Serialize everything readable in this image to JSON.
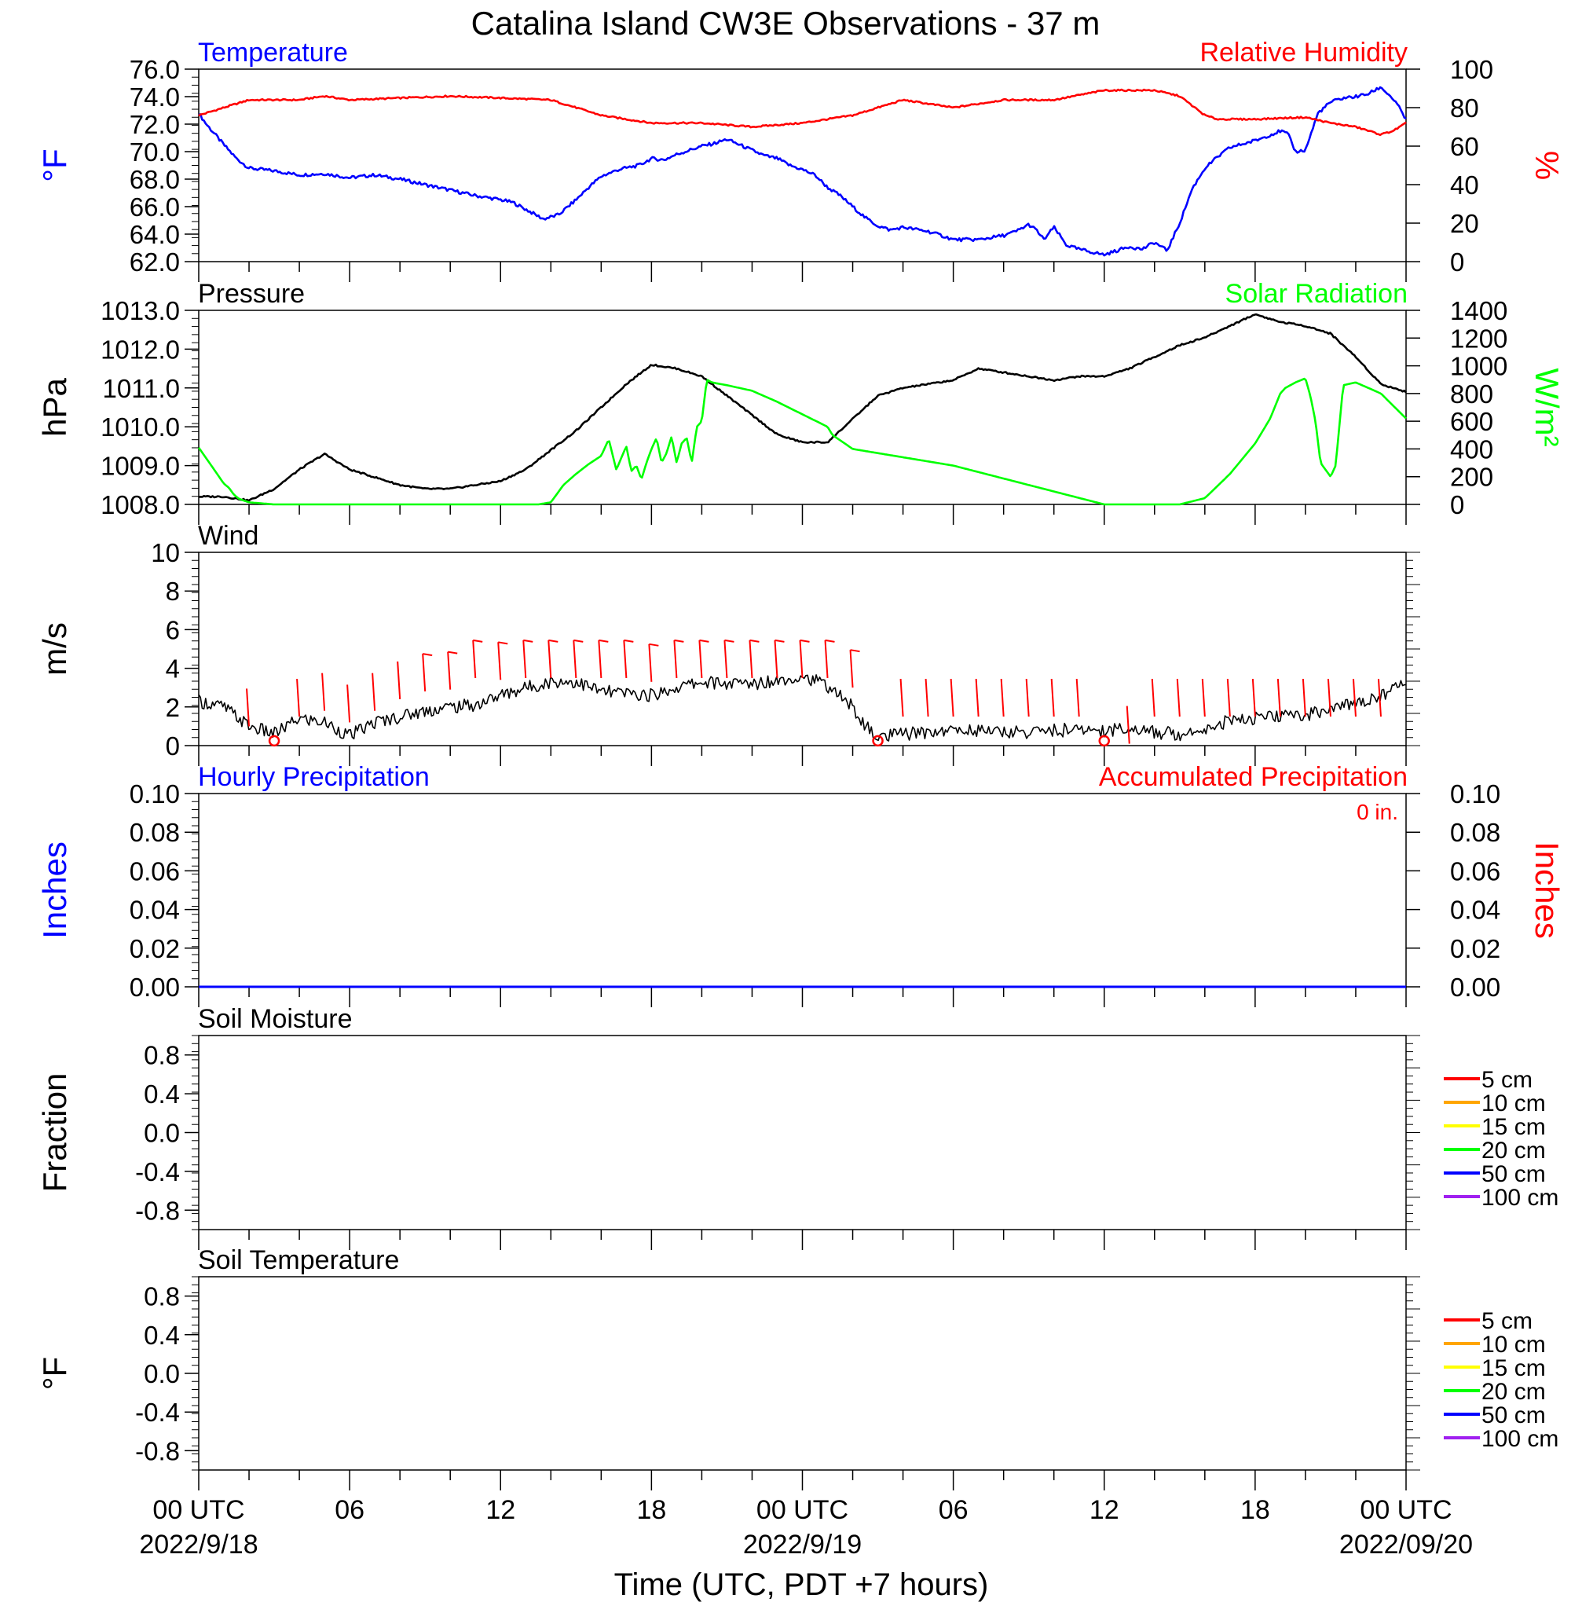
{
  "title": "Catalina Island CW3E Observations - 37 m",
  "xaxis": {
    "label": "Time (UTC, PDT +7 hours)",
    "range_hours": [
      0,
      48
    ],
    "ticks": [
      {
        "hour": 0,
        "label": "00 UTC",
        "date": "2022/9/18"
      },
      {
        "hour": 6,
        "label": "06",
        "date": ""
      },
      {
        "hour": 12,
        "label": "12",
        "date": ""
      },
      {
        "hour": 18,
        "label": "18",
        "date": ""
      },
      {
        "hour": 24,
        "label": "00 UTC",
        "date": "2022/9/19"
      },
      {
        "hour": 30,
        "label": "06",
        "date": ""
      },
      {
        "hour": 36,
        "label": "12",
        "date": ""
      },
      {
        "hour": 42,
        "label": "18",
        "date": ""
      },
      {
        "hour": 48,
        "label": "00 UTC",
        "date": "2022/09/20"
      }
    ]
  },
  "colors": {
    "temperature": "#0000ff",
    "humidity": "#ff0000",
    "pressure": "#000000",
    "solar": "#00ff00",
    "wind": "#000000",
    "wind_barb": "#ff0000",
    "precip": "#ff0000",
    "depths": [
      "#ff0000",
      "#ffa500",
      "#ffff00",
      "#00ff00",
      "#0000ff",
      "#a020f0"
    ]
  },
  "chart_data": [
    {
      "type": "line",
      "panel": "temperature-humidity",
      "left_label": "Temperature",
      "right_label": "Relative Humidity",
      "ylabel_left": "°F",
      "ylabel_right": "%",
      "ylim_left": [
        62,
        76
      ],
      "yticks_left": [
        "62.0",
        "64.0",
        "66.0",
        "68.0",
        "70.0",
        "72.0",
        "74.0",
        "76.0"
      ],
      "ylim_right": [
        0,
        100
      ],
      "yticks_right": [
        "0",
        "20",
        "40",
        "60",
        "80",
        "100"
      ],
      "series": [
        {
          "axis": "left",
          "x": [
            0,
            0.3,
            1,
            1.5,
            2,
            3,
            4,
            5,
            6,
            7,
            8,
            9,
            10,
            11,
            12,
            12.5,
            13,
            13.7,
            14.3,
            15,
            15.5,
            16,
            16.7,
            17.5,
            18,
            18.5,
            19,
            19.5,
            20,
            20.5,
            21,
            21.5,
            22,
            22.5,
            23,
            23.5,
            24,
            24.5,
            25,
            25.5,
            26,
            26.5,
            27,
            27.5,
            28,
            29,
            29.7,
            30,
            31,
            32,
            32.5,
            33,
            33.3,
            33.6,
            34,
            34.5,
            35,
            35.5,
            36,
            36.5,
            37,
            37.5,
            38,
            38.5,
            39,
            39.5,
            40,
            40.5,
            41,
            42,
            43,
            43.3,
            43.6,
            44,
            44.5,
            45,
            45.5,
            46,
            46.5,
            47,
            47.5,
            47.8,
            48
          ],
          "values": [
            72.8,
            72,
            70.5,
            69.5,
            68.8,
            68.6,
            68.3,
            68.4,
            68.1,
            68.3,
            68,
            67.6,
            67.2,
            66.8,
            66.5,
            66.3,
            65.8,
            65.1,
            65.4,
            66.5,
            67.4,
            68.2,
            68.7,
            69,
            69.5,
            69.4,
            69.8,
            70.1,
            70.4,
            70.6,
            70.9,
            70.5,
            70.1,
            69.7,
            69.5,
            69,
            68.7,
            68.3,
            67.4,
            66.8,
            66,
            65.2,
            64.6,
            64.3,
            64.5,
            64.2,
            63.8,
            63.6,
            63.6,
            63.9,
            64.2,
            64.7,
            64.3,
            63.6,
            64.5,
            63.2,
            62.9,
            62.7,
            62.5,
            62.8,
            63.1,
            62.9,
            63.4,
            62.8,
            64.8,
            67.3,
            68.8,
            69.6,
            70.3,
            70.8,
            71.5,
            71.3,
            70,
            70.1,
            72.8,
            73.6,
            73.9,
            74,
            74.2,
            74.7,
            73.8,
            73,
            72.3
          ]
        },
        {
          "axis": "right",
          "x": [
            0,
            1,
            2,
            4,
            5,
            6,
            8,
            10,
            12,
            14,
            15,
            16,
            17,
            18,
            20,
            22,
            24,
            26,
            27,
            28,
            30,
            32,
            34,
            36,
            38,
            39,
            40,
            40.5,
            42,
            44,
            45,
            46,
            47,
            47.5,
            48
          ],
          "values": [
            76,
            80,
            84,
            84,
            86,
            84,
            85,
            86,
            85,
            84,
            80,
            76,
            74,
            72,
            72,
            70,
            72,
            76,
            80,
            84,
            80,
            84,
            84,
            89,
            89,
            86,
            76,
            74,
            74,
            75,
            72,
            70,
            66,
            68,
            72
          ]
        }
      ]
    },
    {
      "type": "line",
      "panel": "pressure-solar",
      "left_label": "Pressure",
      "right_label": "Solar Radiation",
      "ylabel_left": "hPa",
      "ylabel_right": "W/m²",
      "ylim_left": [
        1008,
        1013
      ],
      "yticks_left": [
        "1008.0",
        "1009.0",
        "1010.0",
        "1011.0",
        "1012.0",
        "1013.0"
      ],
      "ylim_right": [
        0,
        1400
      ],
      "yticks_right": [
        "0",
        "200",
        "400",
        "600",
        "800",
        "1000",
        "1200",
        "1400"
      ],
      "series": [
        {
          "axis": "left",
          "x": [
            0,
            1,
            2,
            3,
            4,
            5,
            6,
            7,
            8,
            9,
            10,
            11,
            12,
            13,
            14,
            15,
            16,
            17,
            18,
            19,
            20,
            21,
            22,
            23,
            24,
            25,
            26,
            27,
            28,
            29,
            30,
            31,
            32,
            33,
            34,
            35,
            36,
            37,
            38,
            39,
            40,
            41,
            42,
            43,
            44,
            45,
            46,
            47,
            48
          ],
          "values": [
            1008.2,
            1008.2,
            1008.1,
            1008.4,
            1008.9,
            1009.3,
            1008.9,
            1008.7,
            1008.5,
            1008.4,
            1008.4,
            1008.5,
            1008.6,
            1008.9,
            1009.4,
            1009.9,
            1010.5,
            1011.1,
            1011.6,
            1011.5,
            1011.3,
            1010.8,
            1010.3,
            1009.8,
            1009.6,
            1009.6,
            1010.2,
            1010.8,
            1011.0,
            1011.1,
            1011.2,
            1011.5,
            1011.4,
            1011.3,
            1011.2,
            1011.3,
            1011.3,
            1011.5,
            1011.8,
            1012.1,
            1012.3,
            1012.6,
            1012.9,
            1012.7,
            1012.6,
            1012.4,
            1011.8,
            1011.1,
            1010.9
          ]
        },
        {
          "axis": "right",
          "x": [
            0,
            0.5,
            1,
            1.2,
            1.4,
            1.6,
            2,
            3,
            6,
            10,
            13.5,
            14,
            14.5,
            15,
            15.5,
            16,
            16.3,
            16.6,
            17,
            17.2,
            17.4,
            17.6,
            17.8,
            18,
            18.2,
            18.4,
            18.6,
            18.8,
            19,
            19.2,
            19.4,
            19.6,
            19.8,
            20,
            20.2,
            20.4,
            21,
            22,
            23,
            24,
            25,
            25.2,
            26,
            30,
            36,
            38,
            38.5,
            39,
            40,
            41,
            42,
            42.6,
            43,
            43.2,
            43.6,
            44,
            44.2,
            44.4,
            44.6,
            44.8,
            45,
            45.2,
            45.5,
            46,
            47,
            48
          ],
          "values": [
            410,
            280,
            150,
            120,
            70,
            40,
            15,
            0,
            0,
            0,
            0,
            15,
            140,
            220,
            290,
            350,
            470,
            250,
            420,
            240,
            280,
            180,
            300,
            400,
            480,
            300,
            370,
            490,
            300,
            440,
            480,
            300,
            560,
            600,
            900,
            880,
            860,
            820,
            740,
            650,
            560,
            500,
            400,
            280,
            0,
            0,
            0,
            0,
            45,
            220,
            440,
            620,
            800,
            840,
            880,
            910,
            780,
            600,
            300,
            250,
            200,
            280,
            860,
            880,
            800,
            620
          ]
        }
      ]
    },
    {
      "type": "line",
      "panel": "wind",
      "left_label": "Wind",
      "ylabel_left": "m/s",
      "ylim_left": [
        0,
        10
      ],
      "yticks_left": [
        "0",
        "2",
        "4",
        "6",
        "8",
        "10"
      ],
      "series": [
        {
          "axis": "left",
          "x": [
            0,
            1,
            2,
            3,
            4,
            5,
            6,
            7,
            8,
            9,
            10,
            11,
            12,
            13,
            14,
            15,
            16,
            17,
            18,
            19,
            20,
            21,
            22,
            23,
            24,
            25,
            26,
            26.5,
            27,
            28,
            29,
            30,
            31,
            32,
            33,
            34,
            35,
            36,
            37,
            38,
            39,
            40,
            41,
            42,
            43,
            44,
            45,
            46,
            47,
            48
          ],
          "values": [
            2.3,
            2.0,
            1.0,
            0.6,
            1.4,
            1.2,
            0.5,
            1.2,
            1.5,
            1.8,
            2.0,
            2.1,
            2.6,
            3.0,
            3.3,
            3.3,
            2.8,
            2.7,
            2.6,
            3.0,
            3.3,
            3.2,
            3.2,
            3.4,
            3.6,
            3.1,
            2.0,
            1.0,
            0.4,
            0.6,
            0.7,
            0.8,
            0.8,
            0.7,
            0.7,
            0.8,
            0.8,
            0.8,
            0.9,
            0.7,
            0.6,
            0.9,
            1.3,
            1.4,
            1.5,
            1.6,
            1.9,
            2.2,
            2.6,
            3.3
          ]
        }
      ],
      "barbs": {
        "x": [
          2,
          3,
          4,
          5,
          6,
          7,
          8,
          9,
          10,
          11,
          12,
          13,
          14,
          15,
          16,
          17,
          18,
          19,
          20,
          21,
          22,
          23,
          24,
          25,
          26,
          27,
          28,
          29,
          30,
          31,
          32,
          33,
          34,
          35,
          36,
          37,
          38,
          39,
          40,
          41,
          42,
          43,
          44,
          45,
          46,
          47
        ],
        "speed": [
          1.0,
          0.3,
          1.5,
          1.8,
          1.2,
          1.8,
          2.4,
          2.8,
          2.9,
          3.5,
          3.4,
          3.5,
          3.5,
          3.5,
          3.5,
          3.5,
          3.3,
          3.5,
          3.5,
          3.5,
          3.5,
          3.5,
          3.5,
          3.5,
          3.0,
          0.4,
          1.5,
          1.5,
          1.5,
          1.5,
          1.5,
          1.5,
          1.5,
          1.5,
          1.2,
          0.1,
          1.5,
          1.5,
          1.5,
          1.5,
          1.5,
          1.5,
          1.5,
          1.5,
          1.5,
          1.5
        ],
        "calm_x": [
          3,
          27,
          36
        ]
      }
    },
    {
      "type": "line",
      "panel": "precipitation",
      "left_label": "Hourly Precipitation",
      "right_label": "Accumulated Precipitation",
      "accumulated_total": "0 in.",
      "ylabel_left": "Inches",
      "ylabel_right": "Inches",
      "ylim_left": [
        0,
        0.1
      ],
      "yticks_left": [
        "0.00",
        "0.02",
        "0.04",
        "0.06",
        "0.08",
        "0.10"
      ],
      "ylim_right": [
        0,
        0.1
      ],
      "yticks_right": [
        "0.00",
        "0.02",
        "0.04",
        "0.06",
        "0.08",
        "0.10"
      ],
      "series": [
        {
          "axis": "left",
          "x": [
            0,
            48
          ],
          "values": [
            0,
            0
          ]
        }
      ]
    },
    {
      "type": "line",
      "panel": "soil-moisture",
      "left_label": "Soil Moisture",
      "ylabel_left": "Fraction",
      "ylim_left": [
        -1,
        1
      ],
      "yticks_left": [
        "-0.8",
        "-0.4",
        "0.0",
        "0.4",
        "0.8"
      ],
      "legend": [
        "5 cm",
        "10 cm",
        "15 cm",
        "20 cm",
        "50 cm",
        "100 cm"
      ],
      "series": []
    },
    {
      "type": "line",
      "panel": "soil-temperature",
      "left_label": "Soil Temperature",
      "ylabel_left": "°F",
      "ylim_left": [
        -1,
        1
      ],
      "yticks_left": [
        "-0.8",
        "-0.4",
        "0.0",
        "0.4",
        "0.8"
      ],
      "legend": [
        "5 cm",
        "10 cm",
        "15 cm",
        "20 cm",
        "50 cm",
        "100 cm"
      ],
      "series": []
    }
  ]
}
